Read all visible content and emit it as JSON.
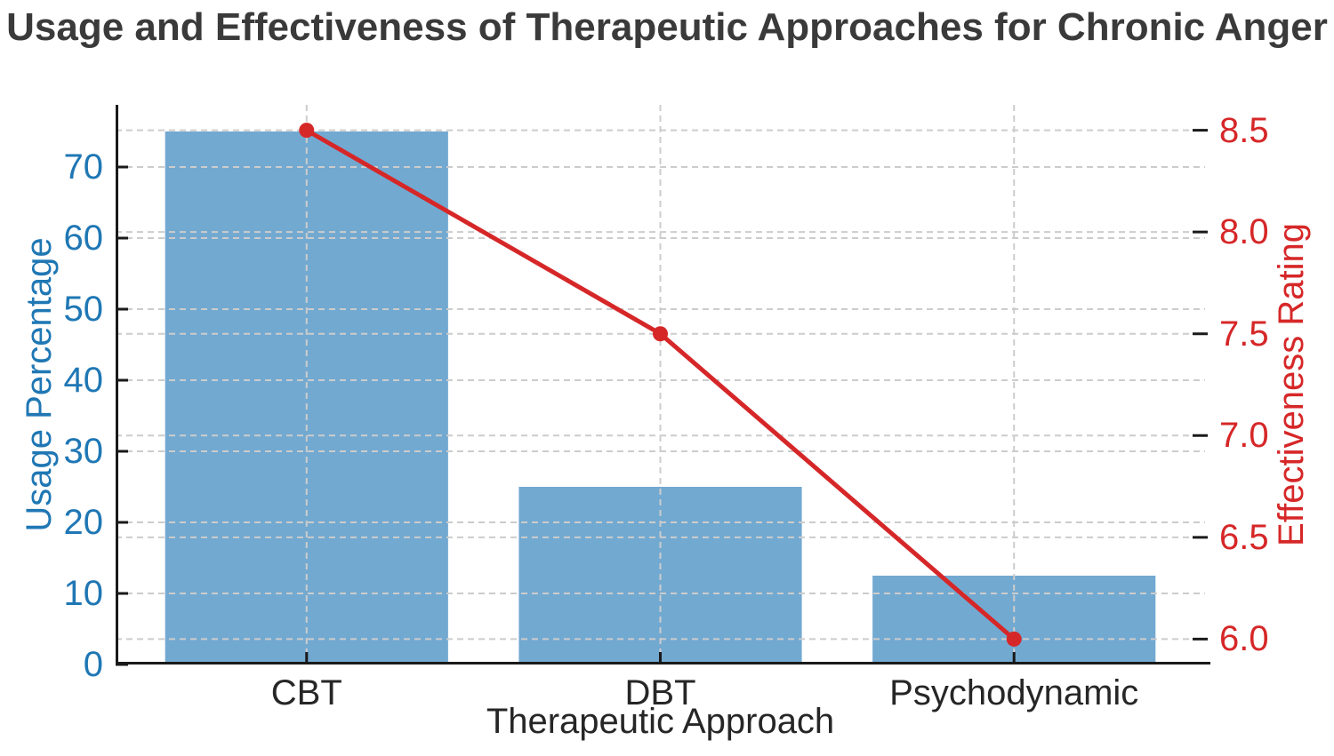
{
  "chart_data": {
    "type": "bar",
    "title": "Usage and Effectiveness of Therapeutic Approaches for Chronic Anger",
    "title_color": "#3a3a3a",
    "xlabel": "Therapeutic Approach",
    "categories": [
      "CBT",
      "DBT",
      "Psychodynamic"
    ],
    "series": [
      {
        "name": "Usage Percentage",
        "type": "bar",
        "axis": "left",
        "values": [
          75,
          25,
          12.5
        ],
        "color": "#72a9d1"
      },
      {
        "name": "Effectiveness Rating",
        "type": "line",
        "axis": "right",
        "values": [
          8.5,
          7.5,
          6.0
        ],
        "color": "#d62728",
        "marker": "circle"
      }
    ],
    "left_axis": {
      "label": "Usage Percentage",
      "ticks": [
        0,
        10,
        20,
        30,
        40,
        50,
        60,
        70
      ],
      "lim": [
        0,
        78.75
      ],
      "color": "#1f77b4"
    },
    "right_axis": {
      "label": "Effectiveness Rating",
      "tick_labels": [
        "6.0",
        "6.5",
        "7.0",
        "7.5",
        "8.0",
        "8.5"
      ],
      "tick_values": [
        6.0,
        6.5,
        7.0,
        7.5,
        8.0,
        8.5
      ],
      "lim": [
        5.875,
        8.625
      ],
      "color": "#d62728"
    },
    "x_axis": {
      "lim": [
        -0.54,
        2.54
      ],
      "bar_width": 0.8,
      "tick_label_color": "#262626",
      "label_color": "#262626"
    },
    "grid": {
      "style": "dashed",
      "color": "#cccccc"
    },
    "spine_color": "#1a1a1a",
    "legend": "none"
  }
}
